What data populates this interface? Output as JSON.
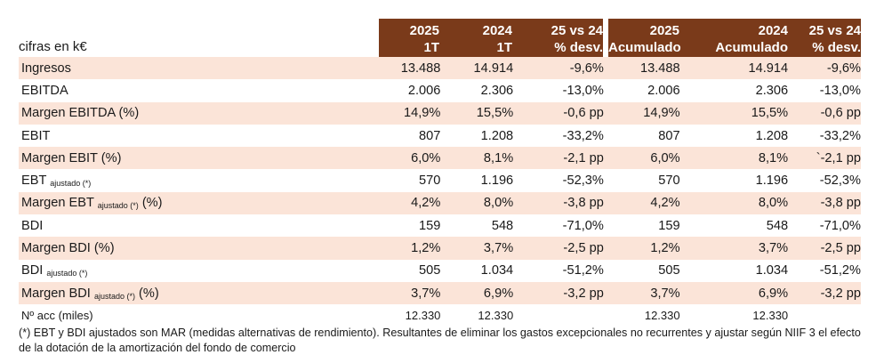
{
  "unit_label": "cifras en k€",
  "headers": [
    {
      "line1": "2025",
      "line2": "1T"
    },
    {
      "line1": "2024",
      "line2": "1T"
    },
    {
      "line1": "25 vs 24",
      "line2": "% desv."
    },
    {
      "line1": "2025",
      "line2": "Acumulado"
    },
    {
      "line1": "2024",
      "line2": "Acumulado"
    },
    {
      "line1": "25 vs 24",
      "line2": "% desv."
    }
  ],
  "rows": [
    {
      "label": "Ingresos",
      "sub": "",
      "suffix": "",
      "values": [
        "13.488",
        "14.914",
        "-9,6%",
        "13.488",
        "14.914",
        "-9,6%"
      ]
    },
    {
      "label": "EBITDA",
      "sub": "",
      "suffix": "",
      "values": [
        "2.006",
        "2.306",
        "-13,0%",
        "2.006",
        "2.306",
        "-13,0%"
      ]
    },
    {
      "label": "Margen EBITDA (%)",
      "sub": "",
      "suffix": "",
      "values": [
        "14,9%",
        "15,5%",
        "-0,6 pp",
        "14,9%",
        "15,5%",
        "-0,6 pp"
      ]
    },
    {
      "label": "EBIT",
      "sub": "",
      "suffix": "",
      "values": [
        "807",
        "1.208",
        "-33,2%",
        "807",
        "1.208",
        "-33,2%"
      ]
    },
    {
      "label": "Margen EBIT (%)",
      "sub": "",
      "suffix": "",
      "values": [
        "6,0%",
        "8,1%",
        "-2,1 pp",
        "6,0%",
        "8,1%",
        "`-2,1 pp"
      ]
    },
    {
      "label": "EBT",
      "sub": "ajustado (*)",
      "suffix": "",
      "values": [
        "570",
        "1.196",
        "-52,3%",
        "570",
        "1.196",
        "-52,3%"
      ]
    },
    {
      "label": "Margen EBT",
      "sub": "ajustado (*)",
      "suffix": "(%)",
      "values": [
        "4,2%",
        "8,0%",
        "-3,8 pp",
        "4,2%",
        "8,0%",
        "-3,8 pp"
      ]
    },
    {
      "label": "BDI",
      "sub": "",
      "suffix": "",
      "values": [
        "159",
        "548",
        "-71,0%",
        "159",
        "548",
        "-71,0%"
      ]
    },
    {
      "label": "Margen BDI (%)",
      "sub": "",
      "suffix": "",
      "values": [
        "1,2%",
        "3,7%",
        "-2,5 pp",
        "1,2%",
        "3,7%",
        "-2,5 pp"
      ]
    },
    {
      "label": "BDI",
      "sub": "ajustado (*)",
      "suffix": "",
      "values": [
        "505",
        "1.034",
        "-51,2%",
        "505",
        "1.034",
        "-51,2%"
      ]
    },
    {
      "label": "Margen BDI",
      "sub": "ajustado (*)",
      "suffix": "(%)",
      "values": [
        "3,7%",
        "6,9%",
        "-3,2 pp",
        "3,7%",
        "6,9%",
        "-3,2 pp"
      ]
    },
    {
      "label": "Nº acc (miles)",
      "sub": "",
      "suffix": "",
      "values": [
        "12.330",
        "12.330",
        "",
        "12.330",
        "12.330",
        ""
      ]
    }
  ],
  "footnote": "(*) EBT y BDI ajustados son MAR (medidas alternativas de rendimiento). Resultantes de eliminar los gastos excepcionales no recurrentes y ajustar según NIIF 3 el efecto de la dotación de la amortización del fondo de comercio",
  "colors": {
    "header_bg": "#7a3a1a",
    "row_shade": "#fbe4d8"
  }
}
